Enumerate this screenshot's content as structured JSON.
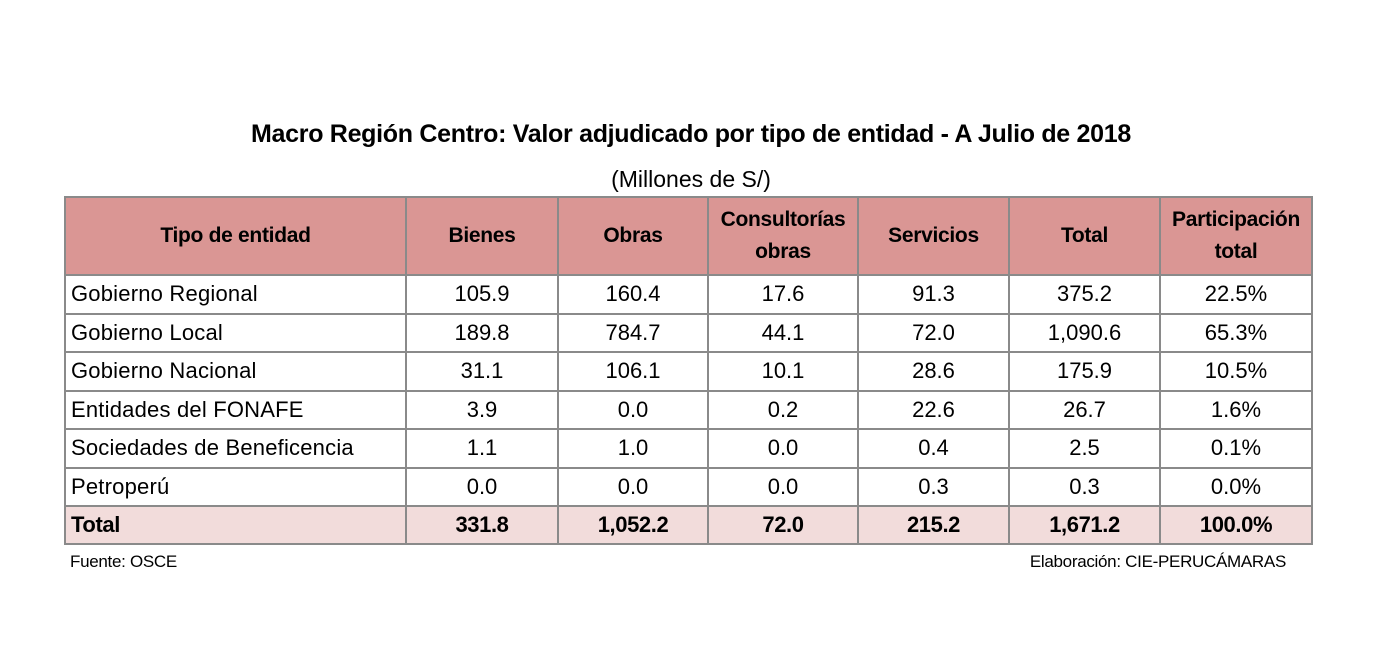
{
  "document": {
    "title": "Macro Región Centro: Valor adjudicado por tipo de entidad - A Julio de 2018",
    "subtitle": "(Millones de S/)",
    "source": "Fuente: OSCE",
    "credit": "Elaboración: CIE-PERUCÁMARAS"
  },
  "table": {
    "headers": [
      [
        "Tipo de entidad"
      ],
      [
        "Bienes"
      ],
      [
        "Obras"
      ],
      [
        "Consultorías",
        "obras"
      ],
      [
        "Servicios"
      ],
      [
        "Total"
      ],
      [
        "Participación",
        "total"
      ]
    ],
    "rows": [
      [
        "Gobierno Regional",
        "105.9",
        "160.4",
        "17.6",
        "91.3",
        "375.2",
        "22.5%"
      ],
      [
        "Gobierno Local",
        "189.8",
        "784.7",
        "44.1",
        "72.0",
        "1,090.6",
        "65.3%"
      ],
      [
        "Gobierno Nacional",
        "31.1",
        "106.1",
        "10.1",
        "28.6",
        "175.9",
        "10.5%"
      ],
      [
        "Entidades del FONAFE",
        "3.9",
        "0.0",
        "0.2",
        "22.6",
        "26.7",
        "1.6%"
      ],
      [
        "Sociedades de Beneficencia",
        "1.1",
        "1.0",
        "0.0",
        "0.4",
        "2.5",
        "0.1%"
      ],
      [
        "Petroperú",
        "0.0",
        "0.0",
        "0.0",
        "0.3",
        "0.3",
        "0.0%"
      ]
    ],
    "total_row": [
      "Total",
      "331.8",
      "1,052.2",
      "72.0",
      "215.2",
      "1,671.2",
      "100.0%"
    ]
  },
  "colors": {
    "header_bg": "#da9694",
    "total_bg": "#f2dcdb",
    "grid": "#8a8a8a"
  }
}
